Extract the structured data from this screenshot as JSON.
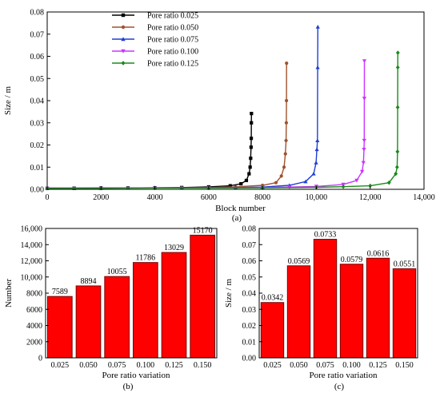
{
  "figure_labels": {
    "a": "(a)",
    "b": "(b)",
    "c": "(c)"
  },
  "chart_data": [
    {
      "type": "scatter",
      "xlabel": "Block number",
      "ylabel": "Size / m",
      "xlim": [
        0,
        14000
      ],
      "ylim": [
        0,
        0.08
      ],
      "xticks": [
        "0",
        "2000",
        "4000",
        "6000",
        "8000",
        "10,000",
        "12,000",
        "14,000"
      ],
      "xtick_values": [
        0,
        2000,
        4000,
        6000,
        8000,
        10000,
        12000,
        14000
      ],
      "yticks": [
        "0.00",
        "0.01",
        "0.02",
        "0.03",
        "0.04",
        "0.05",
        "0.06",
        "0.07",
        "0.08"
      ],
      "ytick_values": [
        0,
        0.01,
        0.02,
        0.03,
        0.04,
        0.05,
        0.06,
        0.07,
        0.08
      ],
      "legend_position": "top-left",
      "series": [
        {
          "name": "Pore ratio 0.025",
          "color": "#000000",
          "marker": "square",
          "x": [
            0,
            1000,
            2000,
            3000,
            4000,
            5000,
            6000,
            6800,
            7200,
            7400,
            7500,
            7540,
            7560,
            7575,
            7582,
            7586,
            7589
          ],
          "y": [
            0.0005,
            0.0005,
            0.0006,
            0.0006,
            0.0007,
            0.0008,
            0.0011,
            0.0016,
            0.0025,
            0.004,
            0.007,
            0.01,
            0.014,
            0.019,
            0.023,
            0.03,
            0.0342
          ]
        },
        {
          "name": "Pore ratio 0.050",
          "color": "#a0522d",
          "marker": "circle",
          "x": [
            0,
            1000,
            2000,
            3000,
            4000,
            5000,
            6000,
            7000,
            8000,
            8500,
            8700,
            8800,
            8850,
            8875,
            8885,
            8890,
            8894
          ],
          "y": [
            0.0005,
            0.0005,
            0.0005,
            0.0006,
            0.0006,
            0.0007,
            0.0008,
            0.0011,
            0.0018,
            0.003,
            0.006,
            0.01,
            0.016,
            0.022,
            0.03,
            0.04,
            0.0569
          ]
        },
        {
          "name": "Pore ratio 0.075",
          "color": "#1f3fd6",
          "marker": "triangle-up",
          "x": [
            0,
            1000,
            2000,
            3000,
            4000,
            5000,
            6000,
            7000,
            8000,
            9000,
            9600,
            9900,
            9990,
            10020,
            10040,
            10050,
            10055
          ],
          "y": [
            0.0005,
            0.0005,
            0.0005,
            0.0006,
            0.0006,
            0.0006,
            0.0007,
            0.0008,
            0.001,
            0.0018,
            0.0035,
            0.007,
            0.012,
            0.018,
            0.022,
            0.055,
            0.0733
          ]
        },
        {
          "name": "Pore ratio 0.100",
          "color": "#cc33ff",
          "marker": "triangle-down",
          "x": [
            0,
            2000,
            4000,
            6000,
            8000,
            9000,
            10000,
            11000,
            11500,
            11700,
            11750,
            11770,
            11780,
            11784,
            11786
          ],
          "y": [
            0.0005,
            0.0005,
            0.0006,
            0.0006,
            0.0008,
            0.001,
            0.0013,
            0.0022,
            0.004,
            0.008,
            0.012,
            0.018,
            0.022,
            0.041,
            0.0579
          ]
        },
        {
          "name": "Pore ratio 0.125",
          "color": "#1a8a1a",
          "marker": "diamond",
          "x": [
            0,
            2000,
            4000,
            6000,
            8000,
            10000,
            11000,
            12000,
            12700,
            12950,
            13000,
            13015,
            13022,
            13026,
            13029
          ],
          "y": [
            0.0005,
            0.0005,
            0.0006,
            0.0006,
            0.0007,
            0.0009,
            0.0012,
            0.0016,
            0.003,
            0.007,
            0.01,
            0.017,
            0.037,
            0.055,
            0.0616
          ]
        }
      ]
    },
    {
      "type": "bar",
      "xlabel": "Pore ratio variation",
      "ylabel": "Number",
      "categories": [
        "0.025",
        "0.050",
        "0.075",
        "0.100",
        "0.125",
        "0.150"
      ],
      "values": [
        7589,
        8894,
        10055,
        11786,
        13029,
        15170
      ],
      "data_labels": [
        "7589",
        "8894",
        "10055",
        "11786",
        "13029",
        "15170"
      ],
      "ylim": [
        0,
        16000
      ],
      "yticks": [
        "0",
        "2000",
        "4000",
        "6000",
        "8000",
        "10,000",
        "12,000",
        "14,000",
        "16,000"
      ],
      "ytick_values": [
        0,
        2000,
        4000,
        6000,
        8000,
        10000,
        12000,
        14000,
        16000
      ],
      "bar_color": "#ff0000"
    },
    {
      "type": "bar",
      "xlabel": "Pore ratio variation",
      "ylabel": "Size / m",
      "categories": [
        "0.025",
        "0.050",
        "0.075",
        "0.100",
        "0.125",
        "0.150"
      ],
      "values": [
        0.0342,
        0.0569,
        0.0733,
        0.0579,
        0.0616,
        0.0551
      ],
      "data_labels": [
        "0.0342",
        "0.0569",
        "0.0733",
        "0.0579",
        "0.0616",
        "0.0551"
      ],
      "ylim": [
        0,
        0.08
      ],
      "yticks": [
        "0.00",
        "0.01",
        "0.02",
        "0.03",
        "0.04",
        "0.05",
        "0.06",
        "0.07",
        "0.08"
      ],
      "ytick_values": [
        0,
        0.01,
        0.02,
        0.03,
        0.04,
        0.05,
        0.06,
        0.07,
        0.08
      ],
      "bar_color": "#ff0000"
    }
  ]
}
